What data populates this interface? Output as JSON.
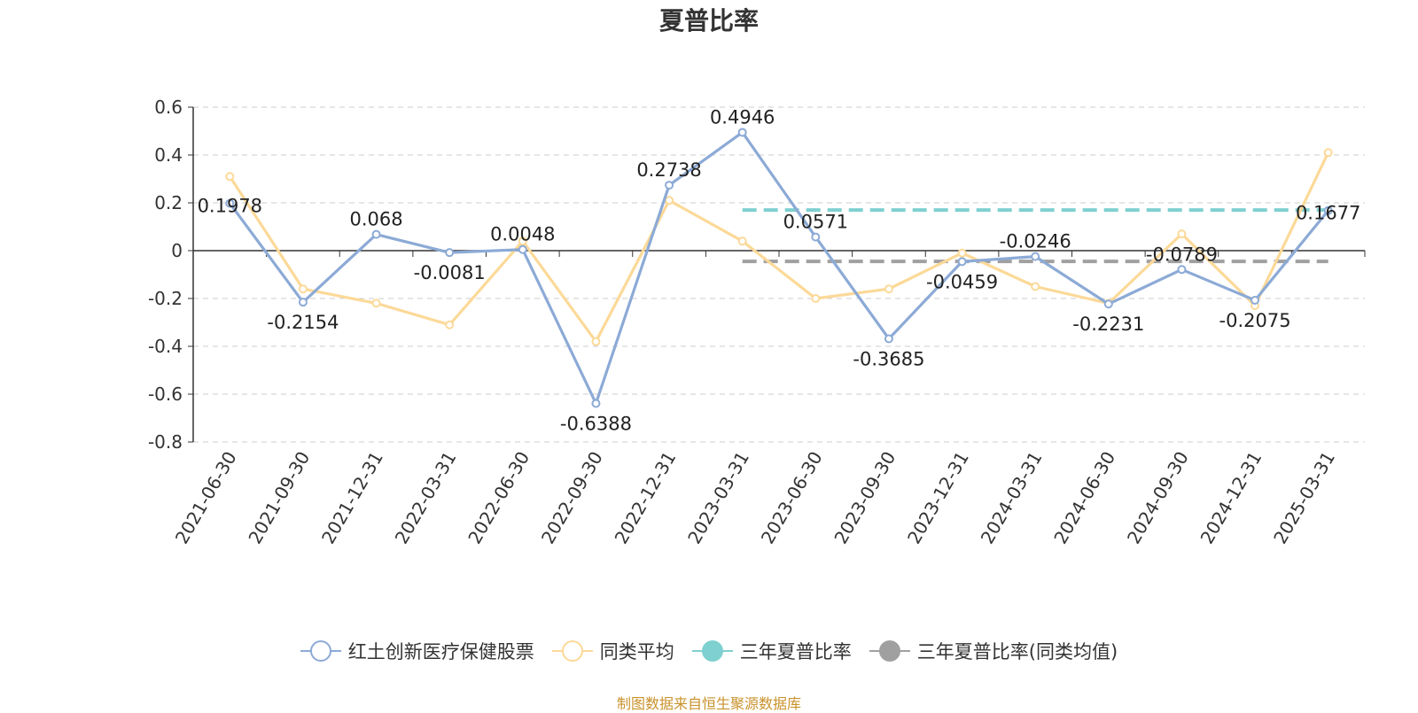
{
  "title": "夏普比率",
  "source_text": "制图数据来自恒生聚源数据库",
  "colors": {
    "fund": "#8caad6",
    "peer": "#fcd998",
    "three_year": "#7fd0d0",
    "three_year_peer": "#a0a0a0",
    "source": "#c9922c"
  },
  "chart_data": {
    "type": "line",
    "title": "夏普比率",
    "categories": [
      "2021-06-30",
      "2021-09-30",
      "2021-12-31",
      "2022-03-31",
      "2022-06-30",
      "2022-09-30",
      "2022-12-31",
      "2023-03-31",
      "2023-06-30",
      "2023-09-30",
      "2023-12-31",
      "2024-03-31",
      "2024-06-30",
      "2024-09-30",
      "2024-12-31",
      "2025-03-31"
    ],
    "ylim": [
      -0.8,
      0.6
    ],
    "yticks": [
      "0.6",
      "0.4",
      "0.2",
      "0",
      "-0.2",
      "-0.4",
      "-0.6",
      "-0.8"
    ],
    "grid": true,
    "legend_position": "bottom",
    "series": [
      {
        "name": "红土创新医疗保健股票",
        "key": "fund",
        "values": [
          0.1978,
          -0.2154,
          0.068,
          -0.0081,
          0.0048,
          -0.6388,
          0.2738,
          0.4946,
          0.0571,
          -0.3685,
          -0.0459,
          -0.0246,
          -0.2231,
          -0.0789,
          -0.2075,
          0.1677
        ],
        "labels": [
          "0.1978",
          "-0.2154",
          "0.068",
          "-0.0081",
          "0.0048",
          "-0.6388",
          "0.2738",
          "0.4946",
          "0.0571",
          "-0.3685",
          "-0.0459",
          "-0.0246",
          "-0.2231",
          "-0.0789",
          "-0.2075",
          "0.1677"
        ]
      },
      {
        "name": "同类平均",
        "key": "peer",
        "values": [
          0.31,
          -0.16,
          -0.22,
          -0.31,
          0.04,
          -0.38,
          0.21,
          0.04,
          -0.2,
          -0.16,
          -0.01,
          -0.15,
          -0.22,
          0.07,
          -0.23,
          0.41
        ]
      }
    ],
    "reference_lines": [
      {
        "name": "三年夏普比率",
        "key": "three_year",
        "value": 0.17,
        "from": "2023-03-31",
        "to": "2025-03-31"
      },
      {
        "name": "三年夏普比率(同类均值)",
        "key": "three_year_peer",
        "value": -0.045,
        "from": "2023-03-31",
        "to": "2025-03-31"
      }
    ]
  },
  "legend": [
    {
      "label": "红土创新医疗保健股票",
      "key": "fund",
      "marker": "hollow"
    },
    {
      "label": "同类平均",
      "key": "peer",
      "marker": "hollow"
    },
    {
      "label": "三年夏普比率",
      "key": "three_year",
      "marker": "filled"
    },
    {
      "label": "三年夏普比率(同类均值)",
      "key": "three_year_peer",
      "marker": "filled"
    }
  ]
}
